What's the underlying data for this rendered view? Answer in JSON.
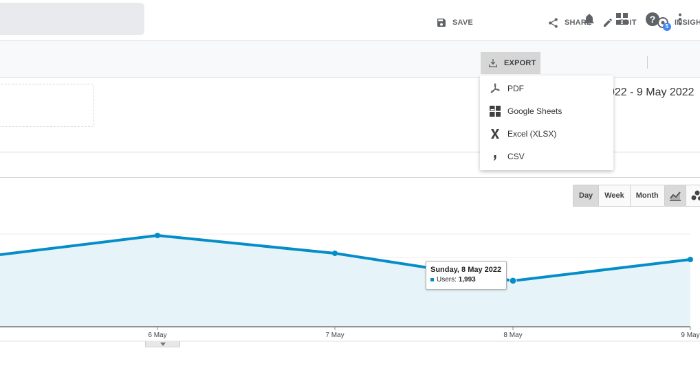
{
  "toolbar": {
    "save": "SAVE",
    "export": "EXPORT",
    "share": "SHARE",
    "edit": "EDIT",
    "insights": "INSIGH",
    "insights_badge": "5"
  },
  "date_range": "022 - 9 May 2022",
  "export_menu": [
    {
      "label": "PDF",
      "icon": "pdf-icon"
    },
    {
      "label": "Google Sheets",
      "icon": "sheets-icon"
    },
    {
      "label": "Excel (XLSX)",
      "icon": "excel-icon"
    },
    {
      "label": "CSV",
      "icon": "csv-icon"
    }
  ],
  "granularity": {
    "options": [
      "Day",
      "Week",
      "Month"
    ],
    "selected": "Day"
  },
  "tooltip": {
    "date": "Sunday, 8 May 2022",
    "metric": "Users:",
    "value": "1,993"
  },
  "colors": {
    "line": "#058dc7",
    "area": "#e6f4fa",
    "accent": "#4285f4"
  },
  "chart_data": {
    "type": "area",
    "x": [
      "",
      "6 May",
      "7 May",
      "8 May",
      "9 May"
    ],
    "series": [
      {
        "name": "Users",
        "values": [
          null,
          null,
          null,
          1993,
          null
        ]
      }
    ],
    "tick_labels": [
      "6 May",
      "7 May",
      "8 May",
      "9 May"
    ]
  }
}
